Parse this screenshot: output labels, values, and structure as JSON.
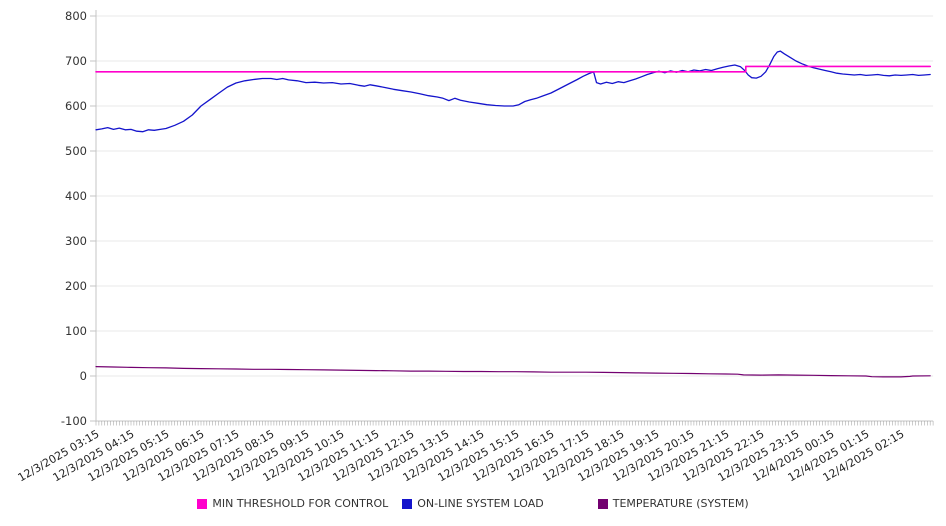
{
  "page": {
    "background": "#ffffff"
  },
  "legend": {
    "items": [
      {
        "label": "MIN THRESHOLD FOR CONTROL",
        "color": "#ff00cc"
      },
      {
        "label": "ON-LINE SYSTEM LOAD",
        "color": "#1414cc"
      },
      {
        "label": "TEMPERATURE (SYSTEM)",
        "color": "#730070"
      }
    ]
  },
  "chart_data": {
    "type": "line",
    "title": "",
    "xlabel": "",
    "ylabel": "",
    "grid": "horizontal-only",
    "legend_position": "bottom-center",
    "style": {
      "axis_color": "#c4c4c4",
      "grid_color": "#e9e9e9",
      "minor_tick_color": "#9a9a9a",
      "tick_label_color": "#222222",
      "y_label_color": "#333333"
    },
    "y_axis": {
      "min": -100,
      "max": 800,
      "tick_step": 100,
      "tick_labels": [
        "-100",
        "0",
        "100",
        "200",
        "300",
        "400",
        "500",
        "600",
        "700",
        "800"
      ]
    },
    "x_axis": {
      "labels": [
        "12/3/2025 03:15",
        "12/3/2025 04:15",
        "12/3/2025 05:15",
        "12/3/2025 06:15",
        "12/3/2025 07:15",
        "12/3/2025 08:15",
        "12/3/2025 09:15",
        "12/3/2025 10:15",
        "12/3/2025 11:15",
        "12/3/2025 12:15",
        "12/3/2025 13:15",
        "12/3/2025 14:15",
        "12/3/2025 15:15",
        "12/3/2025 16:15",
        "12/3/2025 17:15",
        "12/3/2025 18:15",
        "12/3/2025 19:15",
        "12/3/2025 20:15",
        "12/3/2025 21:15",
        "12/3/2025 22:15",
        "12/3/2025 23:15",
        "12/4/2025 00:15",
        "12/4/2025 01:15",
        "12/4/2025 02:15"
      ],
      "minutes_per_label": 60,
      "span_minutes": 1435,
      "minor_tick_minutes": 5,
      "label_rotation_deg": -30
    },
    "series": [
      {
        "name": "MIN THRESHOLD FOR CONTROL",
        "color": "#ff00cc",
        "width": 1.6,
        "points": [
          [
            0,
            676
          ],
          [
            1114,
            676
          ],
          [
            1114,
            688
          ],
          [
            1430,
            688
          ]
        ]
      },
      {
        "name": "ON-LINE SYSTEM LOAD",
        "color": "#1414cc",
        "width": 1.3,
        "points": [
          [
            0,
            547
          ],
          [
            10,
            549
          ],
          [
            20,
            552
          ],
          [
            30,
            548
          ],
          [
            40,
            551
          ],
          [
            50,
            547
          ],
          [
            60,
            548
          ],
          [
            70,
            544
          ],
          [
            80,
            543
          ],
          [
            90,
            547
          ],
          [
            100,
            546
          ],
          [
            110,
            548
          ],
          [
            120,
            550
          ],
          [
            135,
            557
          ],
          [
            150,
            566
          ],
          [
            165,
            580
          ],
          [
            180,
            600
          ],
          [
            195,
            614
          ],
          [
            210,
            628
          ],
          [
            225,
            642
          ],
          [
            240,
            651
          ],
          [
            255,
            656
          ],
          [
            270,
            659
          ],
          [
            285,
            661
          ],
          [
            300,
            661
          ],
          [
            310,
            659
          ],
          [
            320,
            661
          ],
          [
            330,
            658
          ],
          [
            345,
            656
          ],
          [
            360,
            652
          ],
          [
            375,
            653
          ],
          [
            390,
            651
          ],
          [
            405,
            652
          ],
          [
            420,
            649
          ],
          [
            435,
            650
          ],
          [
            450,
            646
          ],
          [
            460,
            644
          ],
          [
            470,
            647
          ],
          [
            480,
            645
          ],
          [
            495,
            641
          ],
          [
            510,
            637
          ],
          [
            525,
            634
          ],
          [
            540,
            631
          ],
          [
            555,
            627
          ],
          [
            570,
            623
          ],
          [
            585,
            620
          ],
          [
            595,
            617
          ],
          [
            605,
            612
          ],
          [
            615,
            617
          ],
          [
            625,
            613
          ],
          [
            640,
            609
          ],
          [
            655,
            606
          ],
          [
            670,
            603
          ],
          [
            685,
            601
          ],
          [
            700,
            600
          ],
          [
            715,
            600
          ],
          [
            725,
            603
          ],
          [
            735,
            610
          ],
          [
            745,
            614
          ],
          [
            755,
            617
          ],
          [
            765,
            622
          ],
          [
            780,
            629
          ],
          [
            795,
            639
          ],
          [
            810,
            649
          ],
          [
            825,
            659
          ],
          [
            835,
            666
          ],
          [
            845,
            672
          ],
          [
            853,
            676
          ],
          [
            858,
            652
          ],
          [
            865,
            649
          ],
          [
            875,
            653
          ],
          [
            885,
            650
          ],
          [
            895,
            654
          ],
          [
            905,
            652
          ],
          [
            915,
            656
          ],
          [
            925,
            660
          ],
          [
            935,
            665
          ],
          [
            945,
            670
          ],
          [
            955,
            674
          ],
          [
            965,
            677
          ],
          [
            975,
            674
          ],
          [
            985,
            678
          ],
          [
            995,
            675
          ],
          [
            1005,
            679
          ],
          [
            1015,
            676
          ],
          [
            1025,
            680
          ],
          [
            1035,
            678
          ],
          [
            1045,
            681
          ],
          [
            1055,
            679
          ],
          [
            1065,
            683
          ],
          [
            1075,
            686
          ],
          [
            1085,
            689
          ],
          [
            1095,
            691
          ],
          [
            1105,
            687
          ],
          [
            1112,
            679
          ],
          [
            1118,
            669
          ],
          [
            1124,
            663
          ],
          [
            1132,
            662
          ],
          [
            1140,
            666
          ],
          [
            1148,
            676
          ],
          [
            1155,
            692
          ],
          [
            1162,
            710
          ],
          [
            1168,
            720
          ],
          [
            1173,
            722
          ],
          [
            1180,
            716
          ],
          [
            1190,
            708
          ],
          [
            1200,
            700
          ],
          [
            1210,
            694
          ],
          [
            1220,
            689
          ],
          [
            1230,
            685
          ],
          [
            1240,
            682
          ],
          [
            1250,
            679
          ],
          [
            1260,
            676
          ],
          [
            1270,
            673
          ],
          [
            1280,
            671
          ],
          [
            1290,
            670
          ],
          [
            1300,
            669
          ],
          [
            1310,
            670
          ],
          [
            1320,
            668
          ],
          [
            1330,
            669
          ],
          [
            1340,
            670
          ],
          [
            1350,
            668
          ],
          [
            1360,
            667
          ],
          [
            1370,
            669
          ],
          [
            1380,
            668
          ],
          [
            1390,
            669
          ],
          [
            1400,
            670
          ],
          [
            1410,
            668
          ],
          [
            1420,
            669
          ],
          [
            1430,
            670
          ]
        ]
      },
      {
        "name": "TEMPERATURE (SYSTEM)",
        "color": "#730070",
        "width": 1.2,
        "points": [
          [
            0,
            21
          ],
          [
            30,
            20
          ],
          [
            60,
            19
          ],
          [
            90,
            18.5
          ],
          [
            120,
            18
          ],
          [
            150,
            17
          ],
          [
            180,
            16.5
          ],
          [
            210,
            16
          ],
          [
            240,
            15.5
          ],
          [
            270,
            15
          ],
          [
            300,
            15
          ],
          [
            330,
            14.5
          ],
          [
            360,
            14
          ],
          [
            390,
            13.5
          ],
          [
            420,
            13
          ],
          [
            450,
            12.5
          ],
          [
            480,
            12
          ],
          [
            510,
            11.5
          ],
          [
            540,
            11
          ],
          [
            570,
            11
          ],
          [
            600,
            10.5
          ],
          [
            630,
            10
          ],
          [
            660,
            10
          ],
          [
            690,
            9.5
          ],
          [
            720,
            9.5
          ],
          [
            750,
            9
          ],
          [
            780,
            8.5
          ],
          [
            810,
            8.5
          ],
          [
            840,
            8.5
          ],
          [
            870,
            8
          ],
          [
            900,
            7.5
          ],
          [
            930,
            7
          ],
          [
            960,
            6.5
          ],
          [
            990,
            6
          ],
          [
            1020,
            5.5
          ],
          [
            1050,
            5
          ],
          [
            1080,
            4.5
          ],
          [
            1100,
            4
          ],
          [
            1110,
            2.5
          ],
          [
            1140,
            2
          ],
          [
            1170,
            2.5
          ],
          [
            1200,
            2
          ],
          [
            1230,
            1.5
          ],
          [
            1260,
            1
          ],
          [
            1290,
            0.5
          ],
          [
            1320,
            0
          ],
          [
            1330,
            -1.5
          ],
          [
            1350,
            -2
          ],
          [
            1380,
            -2
          ],
          [
            1395,
            -1
          ],
          [
            1400,
            0
          ],
          [
            1430,
            0.5
          ]
        ]
      }
    ]
  }
}
